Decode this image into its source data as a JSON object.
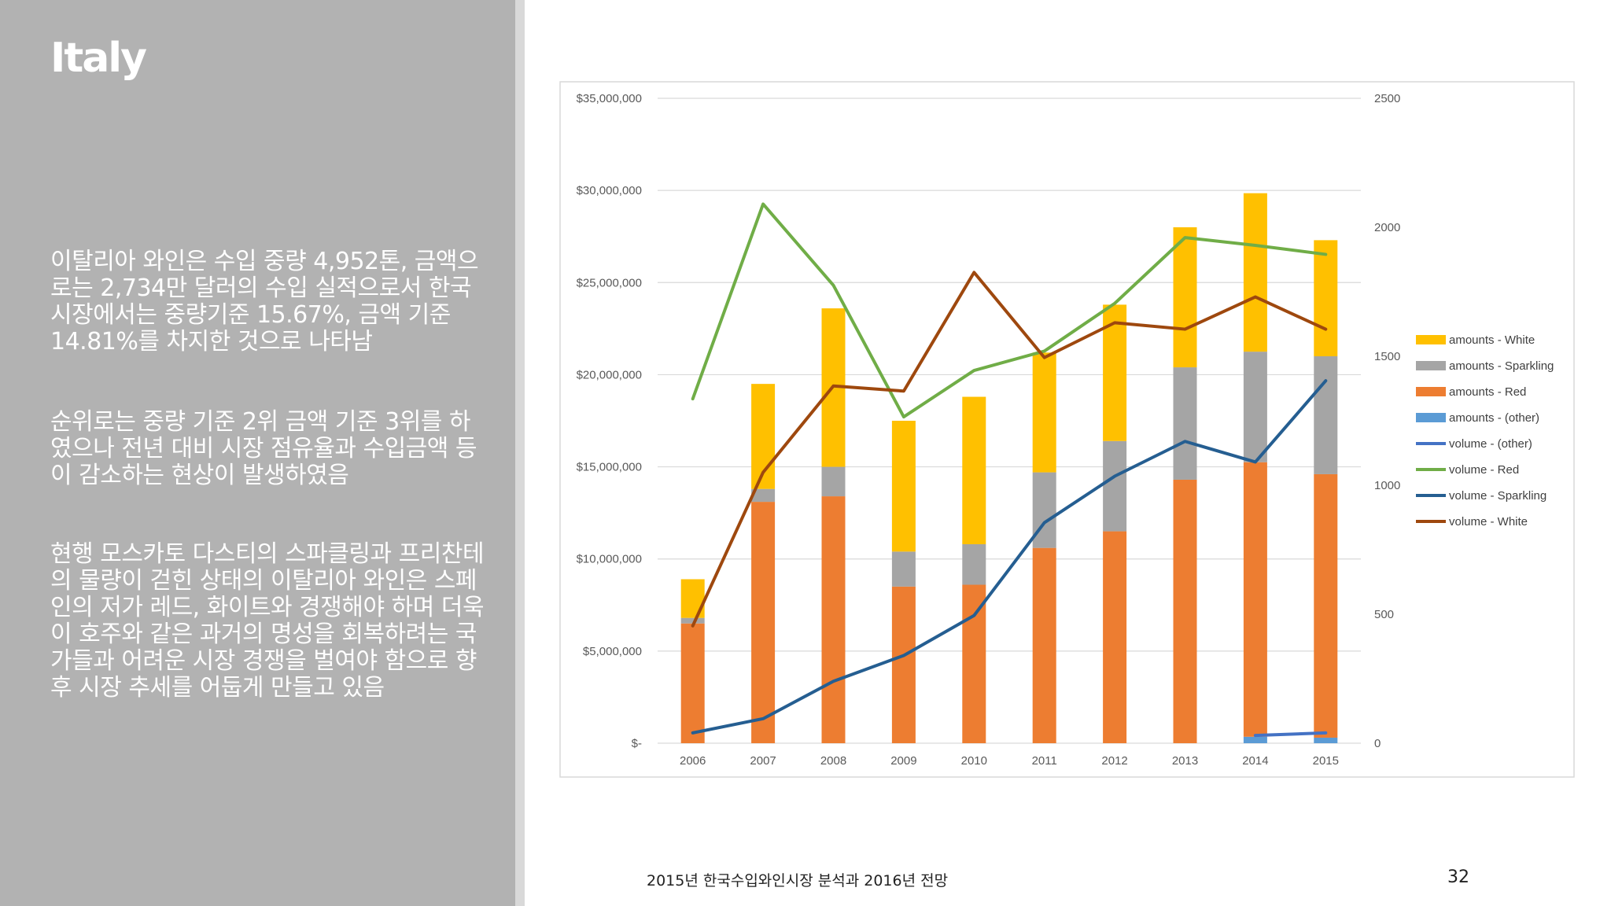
{
  "slide": {
    "title": "Italy",
    "paragraphs": [
      "이탈리아 와인은 수입 중량 4,952톤, 금액으로는 2,734만 달러의 수입 실적으로서 한국 시장에서는 중량기준 15.67%, 금액 기준 14.81%를 차지한 것으로 나타남",
      "순위로는 중량 기준 2위 금액 기준 3위를 하였으나 전년 대비 시장 점유율과 수입금액 등이 감소하는 현상이 발생하였음",
      "현행 모스카토 다스티의 스파클링과 프리찬테의 물량이 걷힌 상태의 이탈리아 와인은 스페인의 저가 레드, 화이트와 경쟁해야 하며 더욱이 호주와 같은 과거의 명성을 회복하려는 국가들과 어려운 시장 경쟁을 벌여야 함으로 향후 시장 추세를 어둡게 만들고 있음"
    ],
    "footer": "2015년 한국수입와인시장 분석과 2016년 전망",
    "page_number": "32"
  },
  "chart_data": {
    "type": "bar",
    "stacked": true,
    "categories": [
      "2006",
      "2007",
      "2008",
      "2009",
      "2010",
      "2011",
      "2012",
      "2013",
      "2014",
      "2015"
    ],
    "ylim": [
      0,
      35000000
    ],
    "y2lim": [
      0,
      2500
    ],
    "yticks": [
      "$-",
      "$5,000,000",
      "$10,000,000",
      "$15,000,000",
      "$20,000,000",
      "$25,000,000",
      "$30,000,000",
      "$35,000,000"
    ],
    "y2ticks": [
      "0",
      "500",
      "1000",
      "1500",
      "2000",
      "2500"
    ],
    "grid": true,
    "legend_position": "right",
    "bar_series": [
      {
        "name": "amounts - (other)",
        "color": "#5b9bd5",
        "values": [
          0,
          0,
          0,
          0,
          0,
          0,
          0,
          0,
          350000,
          300000
        ]
      },
      {
        "name": "amounts - Red",
        "color": "#ed7d31",
        "values": [
          6500000,
          13100000,
          13400000,
          8500000,
          8600000,
          10600000,
          11500000,
          14300000,
          14900000,
          14300000
        ]
      },
      {
        "name": "amounts - Sparkling",
        "color": "#a5a5a5",
        "values": [
          300000,
          700000,
          1600000,
          1900000,
          2200000,
          4100000,
          4900000,
          6100000,
          6000000,
          6400000
        ]
      },
      {
        "name": "amounts - White",
        "color": "#ffc000",
        "values": [
          2100000,
          5700000,
          8600000,
          7100000,
          8000000,
          6500000,
          7400000,
          7600000,
          8600000,
          6300000
        ]
      }
    ],
    "line_series": [
      {
        "name": "volume - (other)",
        "color": "#4472c4",
        "values": [
          null,
          null,
          null,
          null,
          null,
          null,
          null,
          null,
          30,
          40
        ]
      },
      {
        "name": "volume - Red",
        "color": "#70ad47",
        "values": [
          1335,
          2090,
          1775,
          1265,
          1445,
          1520,
          1705,
          1960,
          1930,
          1895
        ]
      },
      {
        "name": "volume - Sparkling",
        "color": "#255e91",
        "values": [
          40,
          95,
          240,
          340,
          495,
          855,
          1035,
          1170,
          1090,
          1405
        ]
      },
      {
        "name": "volume - White",
        "color": "#9e480e",
        "values": [
          455,
          1050,
          1385,
          1365,
          1825,
          1495,
          1630,
          1605,
          1730,
          1605
        ]
      }
    ],
    "legend_order": [
      "amounts - White",
      "amounts - Sparkling",
      "amounts - Red",
      "amounts - (other)",
      "volume - (other)",
      "volume - Red",
      "volume - Sparkling",
      "volume - White"
    ]
  }
}
